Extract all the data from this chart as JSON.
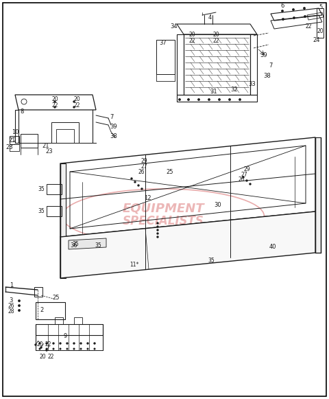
{
  "bg_color": "#FFFFFF",
  "border_color": "#000000",
  "line_color": "#1a1a1a",
  "fig_width": 4.8,
  "fig_height": 5.81,
  "dpi": 100,
  "watermark_line1": "EQUIPMENT",
  "watermark_line2": "SPECIALISTS",
  "wm_color": "#e08888",
  "top_box_labels": [
    [
      305,
      28,
      "4"
    ],
    [
      253,
      38,
      "34"
    ],
    [
      272,
      50,
      "20"
    ],
    [
      272,
      58,
      "22"
    ],
    [
      312,
      50,
      "20"
    ],
    [
      312,
      58,
      "22"
    ],
    [
      382,
      78,
      "39"
    ],
    [
      393,
      92,
      "7"
    ],
    [
      388,
      108,
      "38"
    ],
    [
      363,
      118,
      "33"
    ],
    [
      338,
      125,
      "32"
    ],
    [
      310,
      128,
      "31"
    ],
    [
      238,
      82,
      "37"
    ]
  ],
  "top_right_labels": [
    [
      416,
      8,
      "6"
    ],
    [
      465,
      12,
      "5"
    ],
    [
      448,
      35,
      "22"
    ],
    [
      468,
      38,
      "20"
    ],
    [
      460,
      55,
      "24"
    ]
  ],
  "left_box_labels": [
    [
      90,
      148,
      "20"
    ],
    [
      90,
      156,
      "22"
    ],
    [
      118,
      148,
      "20"
    ],
    [
      118,
      156,
      "22"
    ],
    [
      148,
      170,
      "7"
    ],
    [
      148,
      183,
      "39"
    ],
    [
      148,
      196,
      "38"
    ],
    [
      27,
      190,
      "10"
    ],
    [
      22,
      200,
      "21"
    ],
    [
      16,
      210,
      "23"
    ],
    [
      68,
      208,
      "21"
    ],
    [
      72,
      216,
      "23"
    ],
    [
      30,
      165,
      "8"
    ]
  ],
  "hopper_labels": [
    [
      208,
      238,
      "29"
    ],
    [
      208,
      246,
      "27"
    ],
    [
      204,
      254,
      "26"
    ],
    [
      245,
      248,
      "25"
    ],
    [
      358,
      248,
      "29"
    ],
    [
      354,
      256,
      "27"
    ],
    [
      349,
      263,
      "26"
    ],
    [
      212,
      285,
      "12"
    ],
    [
      315,
      295,
      "30"
    ],
    [
      85,
      268,
      "35"
    ],
    [
      85,
      300,
      "35"
    ],
    [
      84,
      335,
      "35"
    ],
    [
      135,
      360,
      "35"
    ],
    [
      310,
      378,
      "35"
    ],
    [
      396,
      358,
      "40"
    ],
    [
      108,
      358,
      "36"
    ],
    [
      196,
      385,
      "11*"
    ]
  ],
  "bottom_labels": [
    [
      15,
      418,
      "1"
    ],
    [
      22,
      442,
      "3"
    ],
    [
      22,
      450,
      "26"
    ],
    [
      20,
      458,
      "28"
    ],
    [
      62,
      440,
      "2"
    ],
    [
      80,
      435,
      "25"
    ],
    [
      95,
      492,
      "9"
    ],
    [
      60,
      502,
      "20"
    ],
    [
      72,
      502,
      "22"
    ]
  ]
}
